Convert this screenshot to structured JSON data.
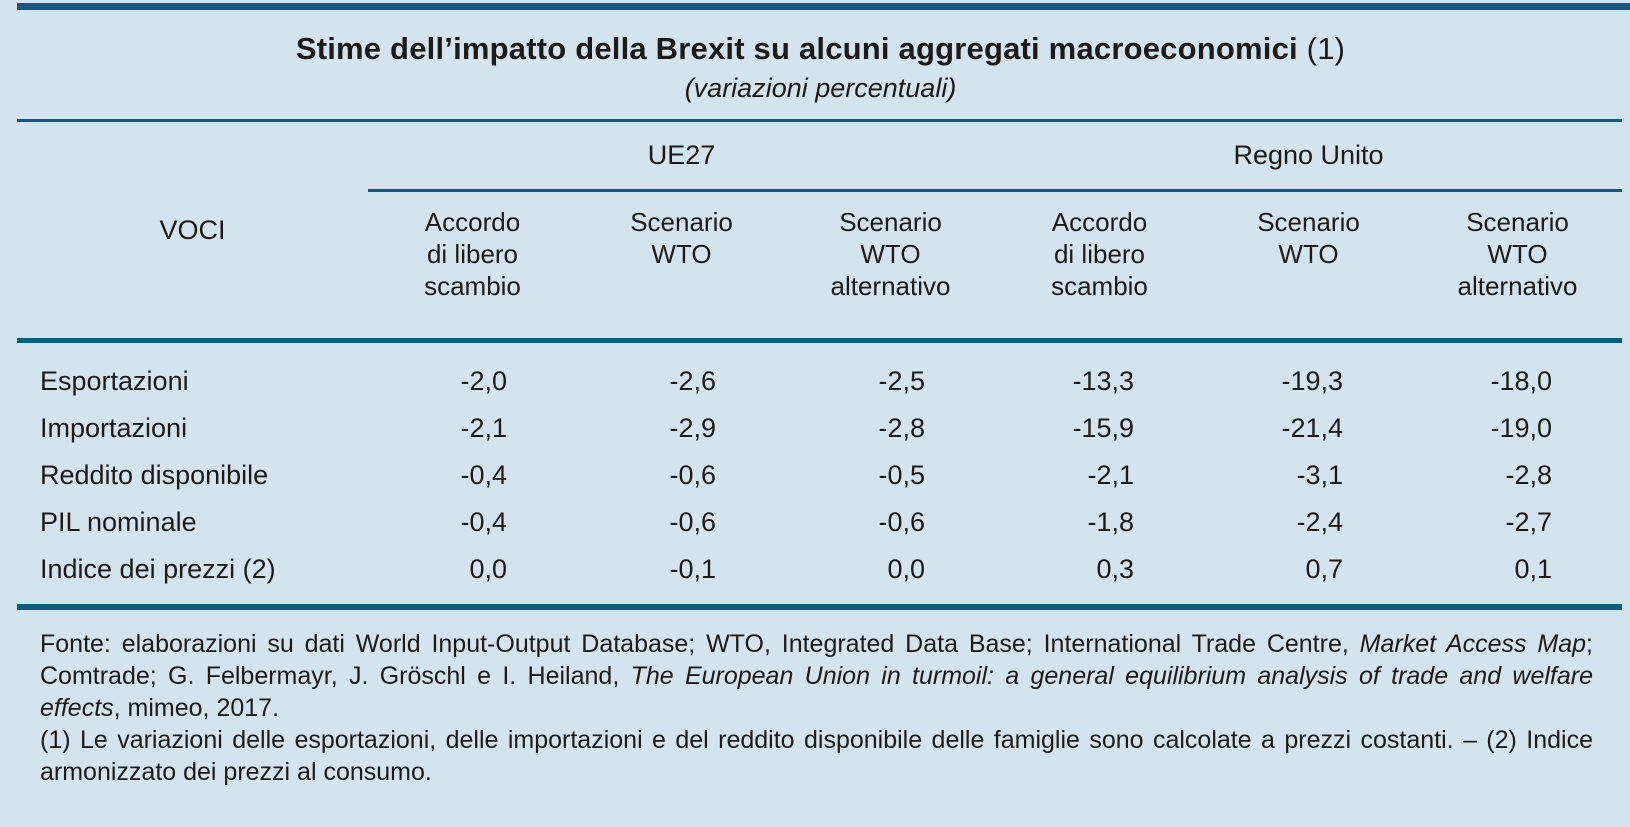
{
  "page": {
    "background_color": "#d3e4ee",
    "accent_color": "#0d5c7e",
    "text_color": "#1b1b1b"
  },
  "header": {
    "title": "Stime dell’impatto della Brexit su alcuni aggregati macroeconomici",
    "title_ref": " (1)",
    "subtitle": "(variazioni percentuali)"
  },
  "table": {
    "row_header_label": "VOCI",
    "groups": [
      {
        "label": "UE27"
      },
      {
        "label": "Regno Unito"
      }
    ],
    "columns": [
      "Accordo\ndi libero\nscambio",
      "Scenario\nWTO",
      "Scenario\nWTO\nalternativo",
      "Accordo\ndi libero\nscambio",
      "Scenario\nWTO",
      "Scenario\nWTO\nalternativo"
    ],
    "rows": [
      {
        "label": "Esportazioni",
        "values": [
          "-2,0",
          "-2,6",
          "-2,5",
          "-13,3",
          "-19,3",
          "-18,0"
        ]
      },
      {
        "label": "Importazioni",
        "values": [
          "-2,1",
          "-2,9",
          "-2,8",
          "-15,9",
          "-21,4",
          "-19,0"
        ]
      },
      {
        "label": "Reddito disponibile",
        "values": [
          "-0,4",
          "-0,6",
          "-0,5",
          "-2,1",
          "-3,1",
          "-2,8"
        ]
      },
      {
        "label": "PIL nominale",
        "values": [
          "-0,4",
          "-0,6",
          "-0,6",
          "-1,8",
          "-2,4",
          "-2,7"
        ]
      },
      {
        "label": "Indice dei prezzi (2)",
        "values": [
          "0,0",
          "-0,1",
          "0,0",
          "0,3",
          "0,7",
          "0,1"
        ]
      }
    ]
  },
  "footer": {
    "fonte_segments": [
      {
        "t": "Fonte: elaborazioni su dati World Input-Output Database; WTO, Integrated Data Base; International Trade Centre, ",
        "i": false
      },
      {
        "t": "Market Access Map",
        "i": true
      },
      {
        "t": "; Comtrade; G. Felbermayr, J. Gröschl e I. Heiland, ",
        "i": false
      },
      {
        "t": "The European Union in turmoil: a general equilibrium analysis of trade and welfare effects",
        "i": true
      },
      {
        "t": ", mimeo, 2017.",
        "i": false
      }
    ],
    "notes": "(1) Le variazioni delle esportazioni, delle importazioni e del reddito disponibile delle famiglie sono calcolate a prezzi costanti. – (2) Indice armonizzato dei prezzi al consumo."
  }
}
